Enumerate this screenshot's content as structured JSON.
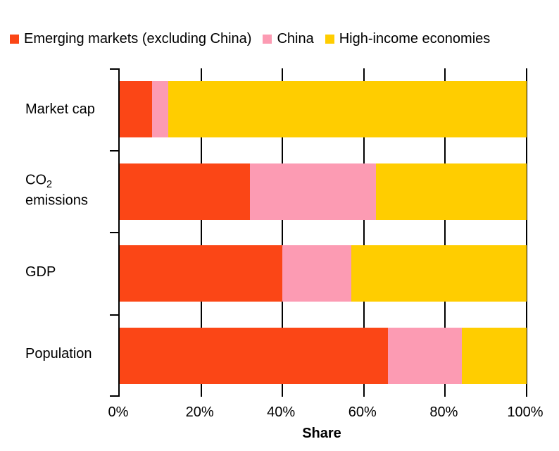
{
  "legend_position": "top",
  "category_labels": [
    {
      "text": "Market cap"
    },
    {
      "pre": "CO",
      "sub": "2",
      "text2": "emissions"
    },
    {
      "text": "GDP"
    },
    {
      "text": "Population"
    }
  ],
  "chart_data": {
    "type": "bar",
    "orientation": "horizontal",
    "stacked": true,
    "categories": [
      "Market cap",
      "CO₂ emissions",
      "GDP",
      "Population"
    ],
    "series": [
      {
        "name": "Emerging markets (excluding China)",
        "color": "#FB4616",
        "values": [
          8,
          32,
          40,
          66
        ]
      },
      {
        "name": "China",
        "color": "#FC9BB3",
        "values": [
          4,
          31,
          17,
          18
        ]
      },
      {
        "name": "High-income economies",
        "color": "#FFCD00",
        "values": [
          88,
          37,
          43,
          16
        ]
      }
    ],
    "title": "",
    "xlabel": "Share",
    "ylabel": "",
    "x_ticks": [
      "0%",
      "20%",
      "40%",
      "60%",
      "80%",
      "100%"
    ],
    "xlim": [
      0,
      100
    ],
    "grid": "vertical-black-lines-at-ticks",
    "legend_position": "top",
    "axis_color": "#000000",
    "background_color": "#FFFFFF"
  }
}
